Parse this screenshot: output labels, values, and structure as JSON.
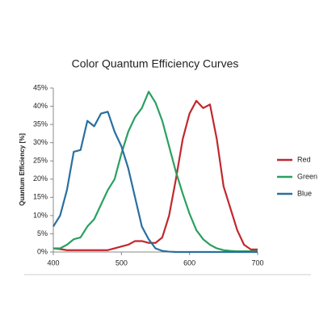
{
  "chart_data": {
    "type": "line",
    "title": "Color Quantum Efficiency Curves",
    "y_label": "Quantum Efficiency [%]",
    "x": [
      400,
      410,
      420,
      430,
      440,
      450,
      460,
      470,
      480,
      490,
      500,
      510,
      520,
      530,
      540,
      550,
      560,
      570,
      580,
      590,
      600,
      610,
      620,
      630,
      640,
      650,
      660,
      670,
      680,
      690,
      700
    ],
    "series": [
      {
        "name": "Red",
        "color": "#c0282d",
        "values": [
          1,
          0.8,
          0.5,
          0.5,
          0.5,
          0.5,
          0.5,
          0.5,
          0.5,
          1,
          1.5,
          2,
          3,
          3,
          2.5,
          2.5,
          4,
          10,
          20,
          31,
          38,
          41.5,
          39.5,
          40.5,
          31,
          18,
          12,
          6,
          2,
          0.7,
          0.7
        ]
      },
      {
        "name": "Green",
        "color": "#2aa060",
        "values": [
          1,
          1,
          2,
          3.5,
          4,
          7,
          9,
          13,
          17,
          20,
          27,
          33,
          37,
          39.5,
          44,
          41,
          36,
          29,
          22,
          16,
          10.5,
          6,
          3.5,
          2,
          1,
          0.5,
          0.3,
          0.2,
          0.2,
          0.2,
          0.2
        ]
      },
      {
        "name": "Blue",
        "color": "#2a6fa0",
        "values": [
          7,
          10,
          17,
          27.5,
          28,
          36,
          34.5,
          38,
          38.5,
          33,
          29,
          23,
          15,
          7,
          3.5,
          1,
          0.3,
          0.1,
          0,
          0,
          0,
          0,
          0,
          0,
          0,
          0,
          0,
          0,
          0,
          0,
          0
        ]
      }
    ],
    "xlim": [
      400,
      700
    ],
    "xticks": [
      400,
      500,
      600,
      700
    ],
    "ylim": [
      0,
      45
    ],
    "yticks": [
      {
        "value": 0,
        "label": "0%"
      },
      {
        "value": 5,
        "label": "5%"
      },
      {
        "value": 10,
        "label": "10%"
      },
      {
        "value": 15,
        "label": "15%"
      },
      {
        "value": 20,
        "label": "20%"
      },
      {
        "value": 25,
        "label": "25%"
      },
      {
        "value": 30,
        "label": "30%"
      },
      {
        "value": 35,
        "label": "35%"
      },
      {
        "value": 40,
        "label": "40%"
      },
      {
        "value": 45,
        "label": "45%"
      }
    ],
    "legend": "right"
  }
}
